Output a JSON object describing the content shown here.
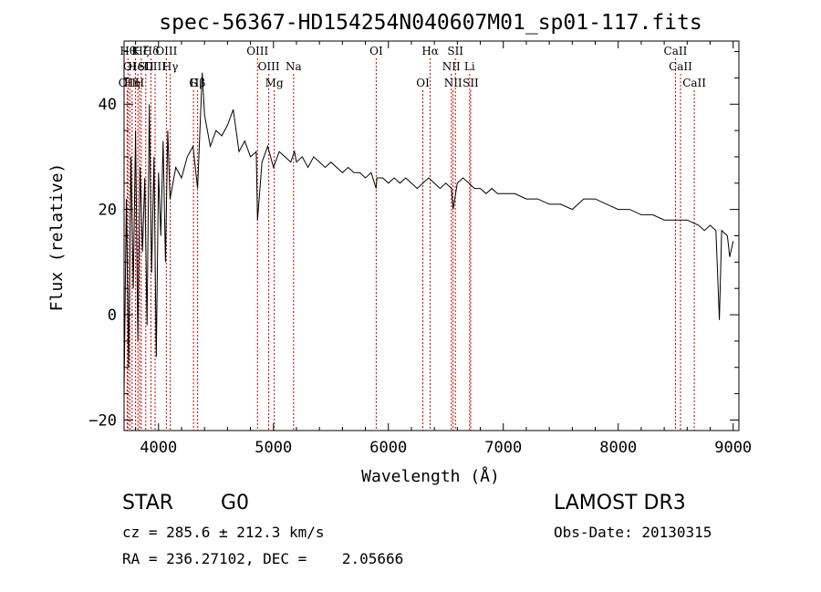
{
  "chart_data": {
    "type": "line",
    "title": "spec-56367-HD154254N040607M01_sp01-117.fits",
    "xlabel": "Wavelength (Å)",
    "ylabel": "Flux (relative)",
    "xlim": [
      3700,
      9050
    ],
    "ylim": [
      -22,
      52
    ],
    "xticks": [
      4000,
      5000,
      6000,
      7000,
      8000,
      9000
    ],
    "yticks": [
      -20,
      0,
      20,
      40
    ],
    "grid": false,
    "series": [
      {
        "name": "spectrum",
        "x": [
          3700,
          3720,
          3740,
          3760,
          3780,
          3800,
          3820,
          3840,
          3860,
          3880,
          3900,
          3920,
          3940,
          3960,
          3980,
          4000,
          4020,
          4040,
          4060,
          4080,
          4100,
          4150,
          4200,
          4250,
          4300,
          4340,
          4380,
          4400,
          4450,
          4500,
          4550,
          4600,
          4650,
          4700,
          4750,
          4800,
          4850,
          4861,
          4900,
          4950,
          5000,
          5050,
          5100,
          5150,
          5183,
          5200,
          5250,
          5300,
          5350,
          5400,
          5450,
          5500,
          5550,
          5600,
          5650,
          5700,
          5750,
          5800,
          5850,
          5893,
          5900,
          5950,
          6000,
          6050,
          6100,
          6150,
          6200,
          6250,
          6300,
          6350,
          6400,
          6450,
          6500,
          6550,
          6563,
          6600,
          6650,
          6700,
          6750,
          6800,
          6850,
          6900,
          6950,
          7000,
          7100,
          7200,
          7300,
          7400,
          7500,
          7600,
          7700,
          7800,
          7900,
          8000,
          8100,
          8200,
          8300,
          8400,
          8500,
          8600,
          8700,
          8750,
          8800,
          8850,
          8880,
          8900,
          8950,
          8970,
          9000
        ],
        "y": [
          -15,
          22,
          -10,
          30,
          5,
          35,
          -5,
          28,
          12,
          26,
          -2,
          40,
          8,
          30,
          -8,
          27,
          15,
          33,
          10,
          35,
          22,
          28,
          26,
          30,
          32,
          24,
          46,
          38,
          32,
          35,
          34,
          36,
          39,
          31,
          33,
          30,
          31,
          18,
          29,
          32,
          28,
          31,
          30,
          29,
          31,
          29,
          30,
          28,
          30,
          29,
          28,
          29,
          28,
          27,
          28,
          27,
          27,
          26,
          27,
          24,
          26,
          26,
          25,
          26,
          25,
          26,
          25,
          24,
          25,
          26,
          25,
          24,
          25,
          24,
          20,
          25,
          26,
          25,
          24,
          24,
          23,
          24,
          23,
          23,
          23,
          22,
          22,
          21,
          21,
          20,
          22,
          22,
          21,
          20,
          20,
          19,
          19,
          18,
          18,
          18,
          17,
          16,
          17,
          16,
          -1,
          16,
          15,
          11,
          14
        ]
      }
    ],
    "lines": [
      {
        "label": "OII",
        "wl": 3727,
        "row": 3
      },
      {
        "label": "Hθ",
        "wl": 3734,
        "row": 1
      },
      {
        "label": "OI",
        "wl": 3750,
        "row": 2
      },
      {
        "label": "Hη",
        "wl": 3770,
        "row": 3
      },
      {
        "label": "K",
        "wl": 3800,
        "row": 1
      },
      {
        "label": "HeI",
        "wl": 3820,
        "row": 2
      },
      {
        "label": "H",
        "wl": 3835,
        "row": 3
      },
      {
        "label": "Hζ",
        "wl": 3850,
        "row": 1
      },
      {
        "label": "SII",
        "wl": 3889,
        "row": 2
      },
      {
        "label": "Hδ",
        "wl": 3934,
        "row": 1
      },
      {
        "label": "OIII",
        "wl": 3970,
        "row": 2
      },
      {
        "label": "OIII",
        "wl": 4068,
        "row": 1
      },
      {
        "label": "Hγ",
        "wl": 4102,
        "row": 2
      },
      {
        "label": "G",
        "wl": 4304,
        "row": 3
      },
      {
        "label": "Hβ",
        "wl": 4340,
        "row": 3
      },
      {
        "label": "OIII",
        "wl": 4861,
        "row": 1
      },
      {
        "label": "OIII",
        "wl": 4959,
        "row": 2
      },
      {
        "label": "Mg",
        "wl": 5007,
        "row": 3
      },
      {
        "label": "Na",
        "wl": 5175,
        "row": 2
      },
      {
        "label": "OI",
        "wl": 5894,
        "row": 1
      },
      {
        "label": "OI",
        "wl": 6300,
        "row": 3
      },
      {
        "label": "Hα",
        "wl": 6364,
        "row": 1
      },
      {
        "label": "NII",
        "wl": 6548,
        "row": 2
      },
      {
        "label": "NII",
        "wl": 6563,
        "row": 3
      },
      {
        "label": "SII",
        "wl": 6583,
        "row": 1
      },
      {
        "label": "Li",
        "wl": 6707,
        "row": 2
      },
      {
        "label": "SII",
        "wl": 6716,
        "row": 3
      },
      {
        "label": "CaII",
        "wl": 8498,
        "row": 1
      },
      {
        "label": "CaII",
        "wl": 8542,
        "row": 2
      },
      {
        "label": "CaII",
        "wl": 8662,
        "row": 3
      }
    ]
  },
  "info": {
    "class_label": "STAR",
    "subclass_label": "G0",
    "survey": "LAMOST DR3",
    "cz": "cz = 285.6 ± 212.3 km/s",
    "obs_date": "Obs-Date: 20130315",
    "coords": "RA = 236.27102, DEC =    2.05666"
  }
}
